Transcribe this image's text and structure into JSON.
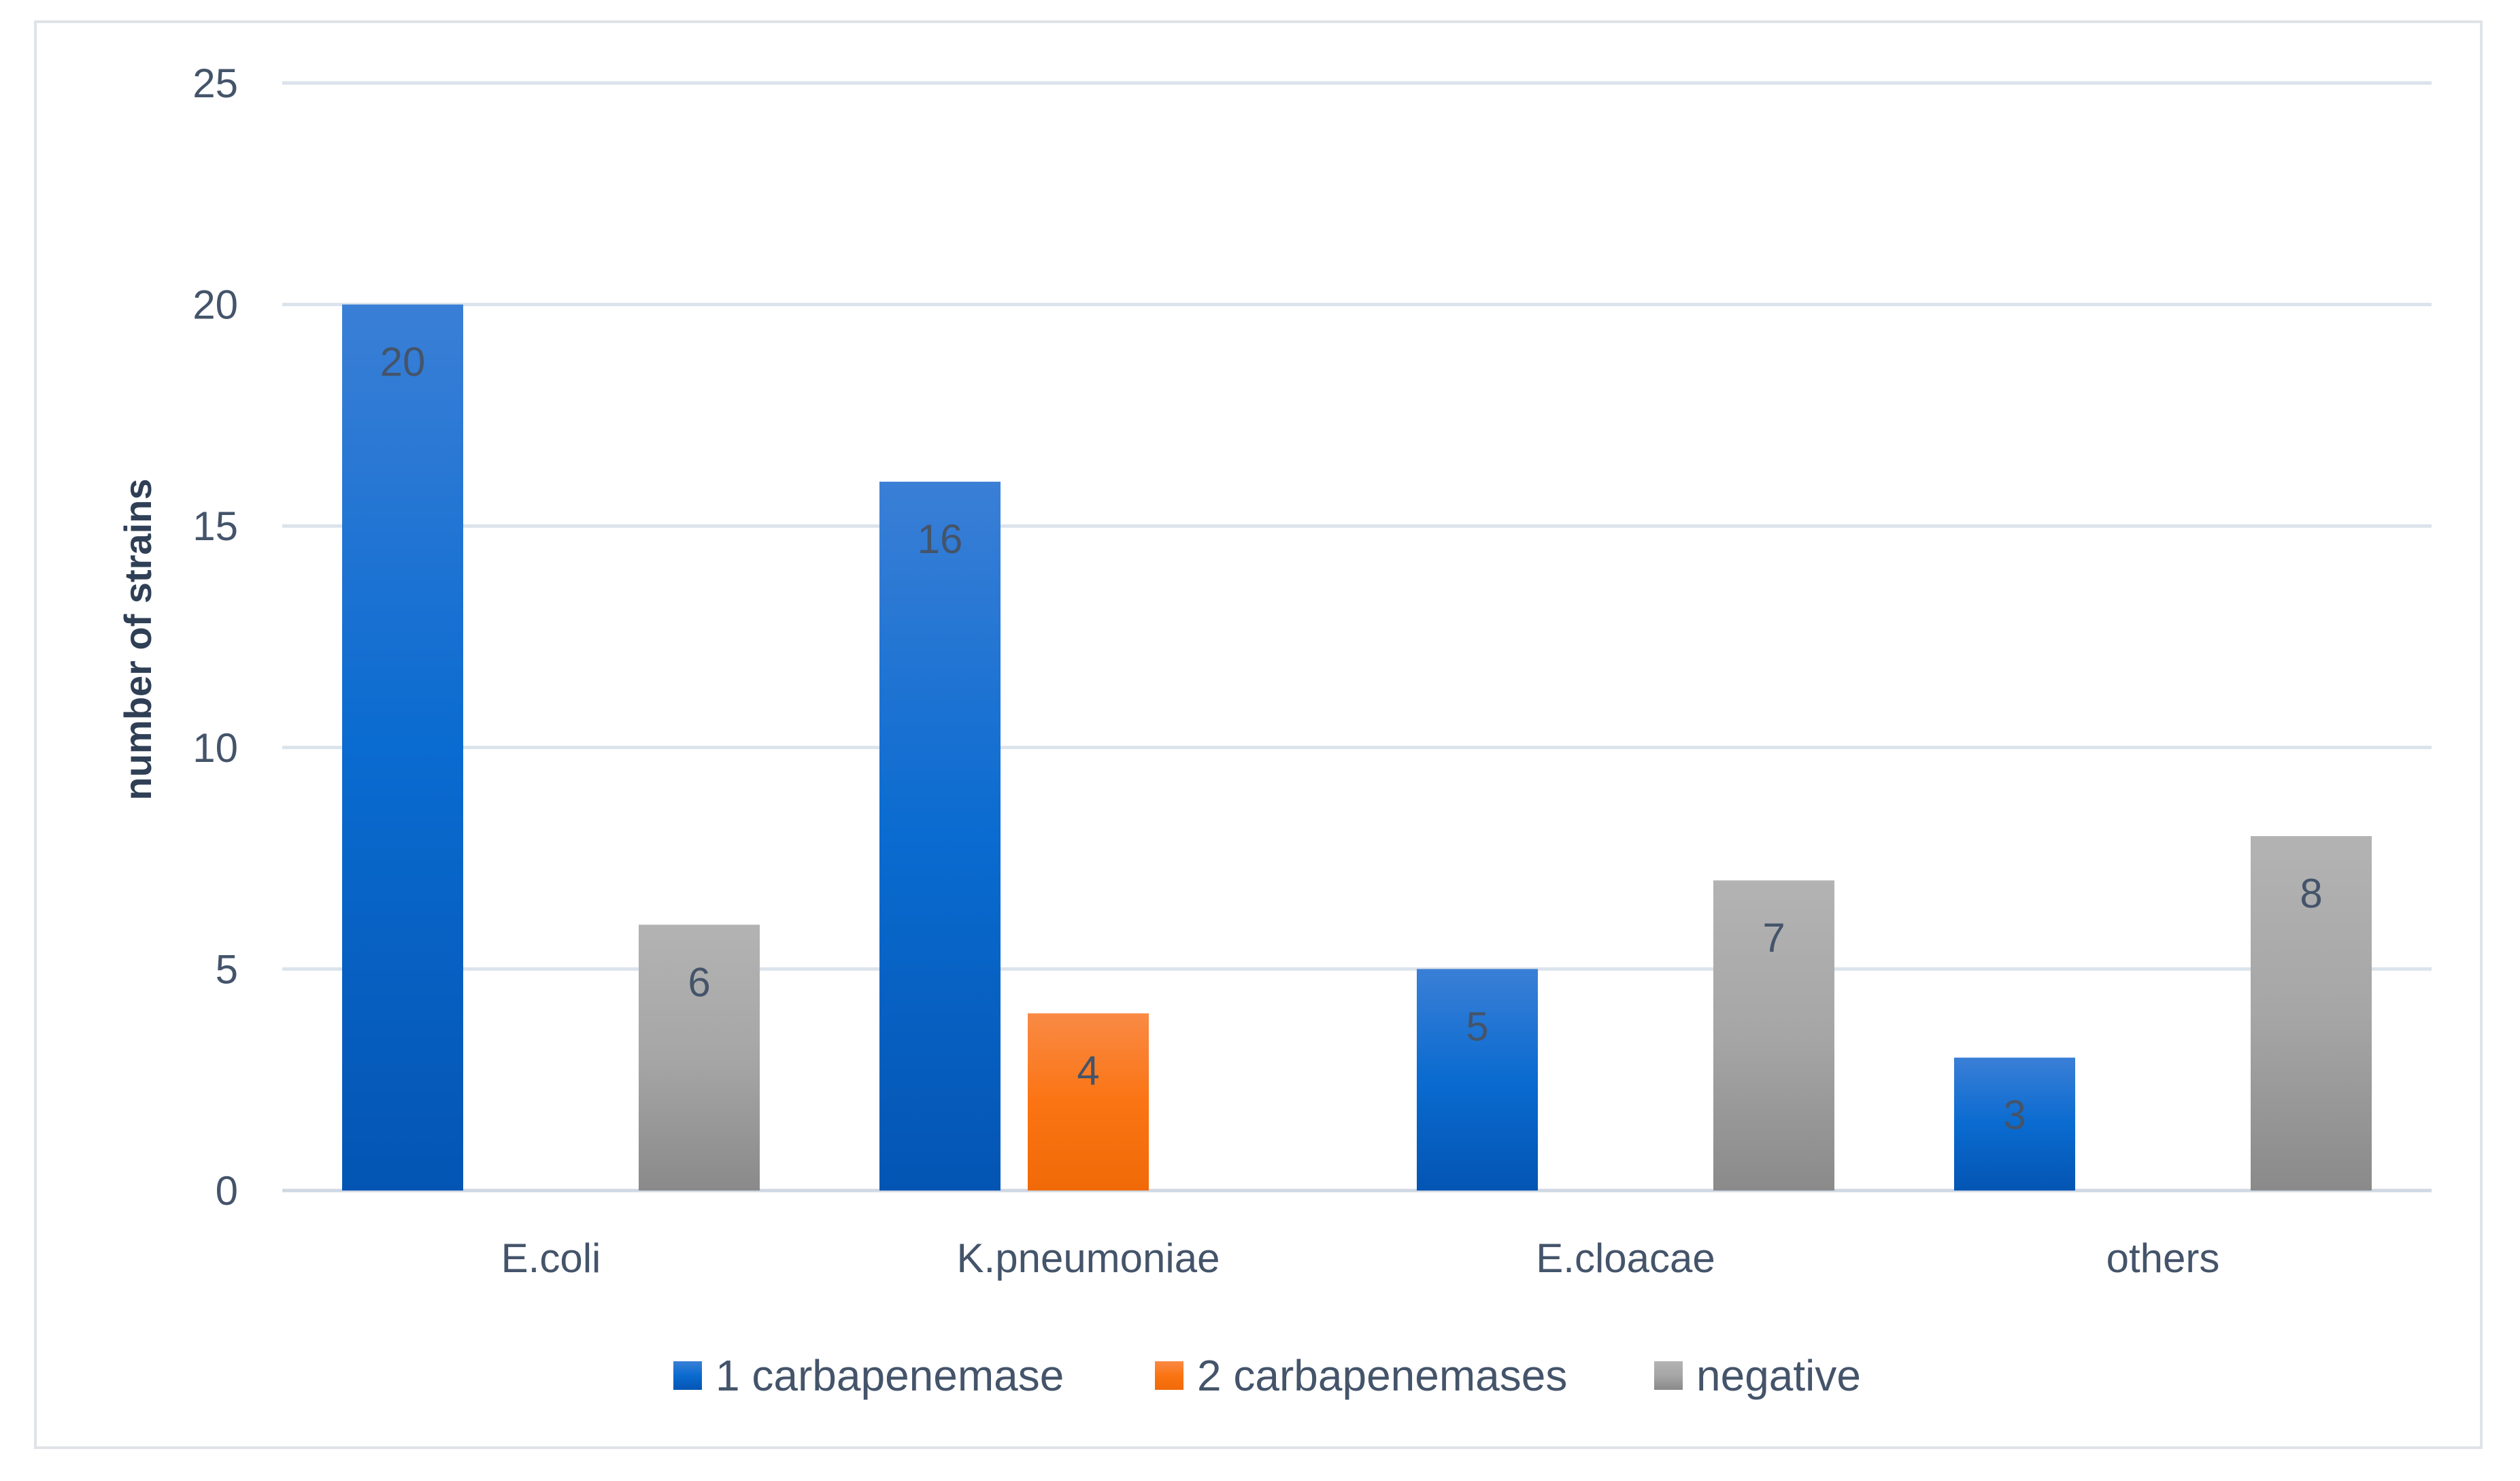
{
  "chart_data": {
    "type": "bar",
    "title": "",
    "xlabel": "",
    "ylabel": "number of strains",
    "ylim": [
      0,
      25
    ],
    "yticks": [
      0,
      5,
      10,
      15,
      20,
      25
    ],
    "grid": true,
    "legend_position": "bottom",
    "categories": [
      "E.coli",
      "K.pneumoniae",
      "E.cloacae",
      "others"
    ],
    "series": [
      {
        "name": "1 carbapenemase",
        "values": [
          20,
          16,
          5,
          3
        ],
        "color": "#0b63c4"
      },
      {
        "name": "2 carbapenemases",
        "values": [
          0,
          4,
          0,
          0
        ],
        "color": "#f4700c"
      },
      {
        "name": "negative",
        "values": [
          6,
          0,
          7,
          8
        ],
        "color": "#8f8f8f"
      }
    ]
  }
}
